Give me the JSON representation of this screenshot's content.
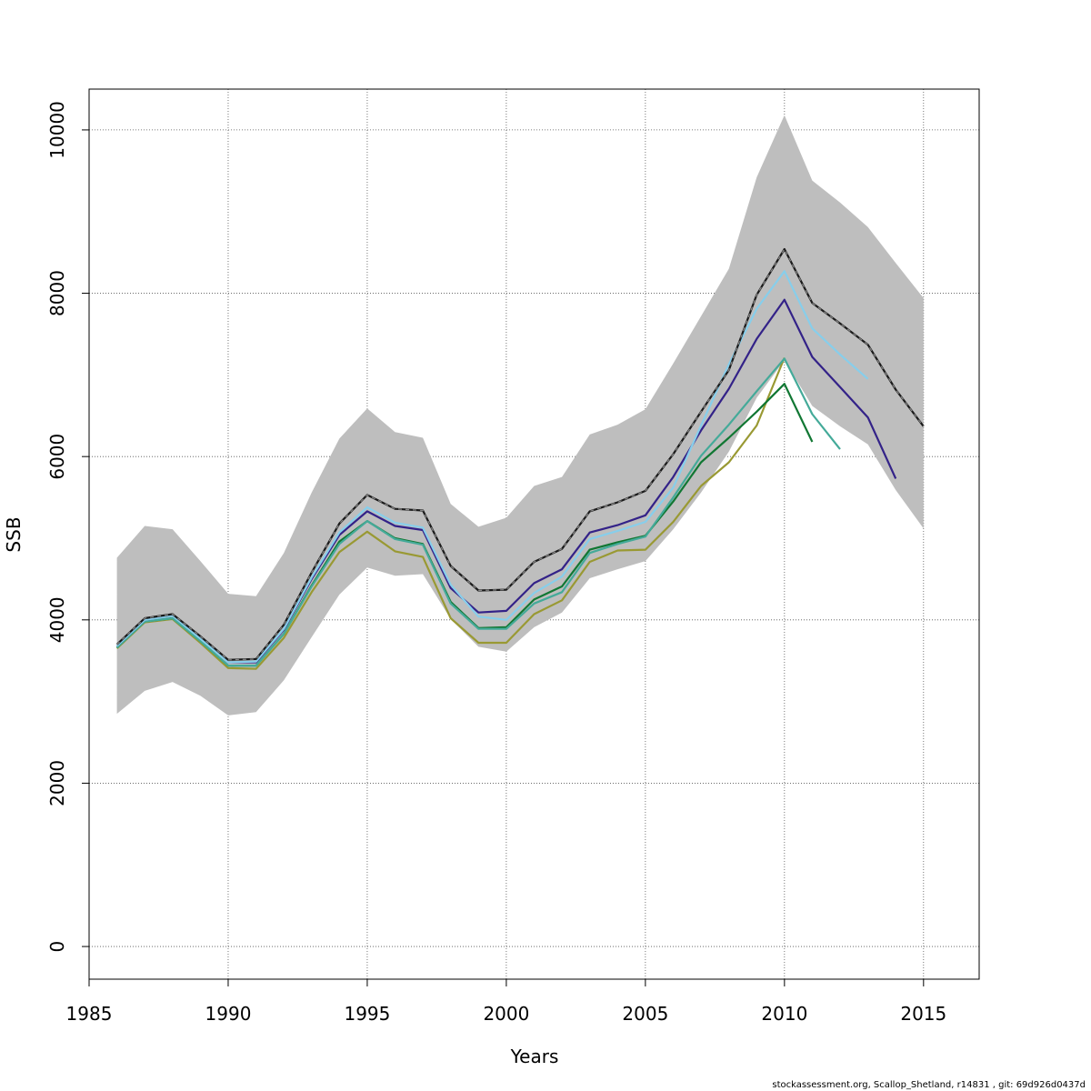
{
  "chart_data": {
    "type": "line",
    "title": "",
    "xlabel": "Years",
    "ylabel": "SSB",
    "xlim": [
      1985,
      2017
    ],
    "ylim": [
      -400,
      10500
    ],
    "x_ticks": [
      1985,
      1990,
      1995,
      2000,
      2005,
      2010,
      2015
    ],
    "y_ticks": [
      0,
      2000,
      4000,
      6000,
      8000,
      10000
    ],
    "grid": true,
    "footer": "stockassessment.org, Scallop_Shetland, r14831 , git: 69d926d0437d",
    "confidence_band": {
      "x": [
        1986,
        1987,
        1988,
        1989,
        1990,
        1991,
        1992,
        1993,
        1994,
        1995,
        1996,
        1997,
        1998,
        1999,
        2000,
        2001,
        2002,
        2003,
        2004,
        2005,
        2006,
        2007,
        2008,
        2009,
        2010,
        2011,
        2012,
        2013,
        2014,
        2015
      ],
      "lower": [
        2850,
        3130,
        3240,
        3070,
        2830,
        2870,
        3260,
        3790,
        4310,
        4640,
        4540,
        4560,
        4010,
        3670,
        3610,
        3910,
        4090,
        4510,
        4620,
        4720,
        5110,
        5560,
        6060,
        6720,
        7180,
        6620,
        6370,
        6150,
        5590,
        5120
      ],
      "upper": [
        4760,
        5150,
        5110,
        4720,
        4320,
        4290,
        4820,
        5560,
        6220,
        6590,
        6300,
        6230,
        5420,
        5140,
        5250,
        5640,
        5750,
        6270,
        6390,
        6580,
        7140,
        7720,
        8300,
        9420,
        10180,
        9380,
        9110,
        8810,
        8370,
        7940
      ],
      "color": "#bebebe"
    },
    "series": [
      {
        "color": "#1a1a1a",
        "dashed": true,
        "x": [
          1986,
          1987,
          1988,
          1989,
          1990,
          1991,
          1992,
          1993,
          1994,
          1995,
          1996,
          1997,
          1998,
          1999,
          2000,
          2001,
          2002,
          2003,
          2004,
          2005,
          2006,
          2007,
          2008,
          2009,
          2010,
          2011,
          2012,
          2013,
          2014,
          2015
        ],
        "values": [
          3700,
          4020,
          4070,
          3800,
          3510,
          3520,
          3940,
          4580,
          5180,
          5530,
          5360,
          5340,
          4660,
          4360,
          4370,
          4710,
          4870,
          5330,
          5440,
          5580,
          6030,
          6550,
          7060,
          7980,
          8540,
          7880,
          7630,
          7370,
          6820,
          6370
        ]
      },
      {
        "color": "#87ceeb",
        "dashed": false,
        "x": [
          1986,
          1987,
          1988,
          1989,
          1990,
          1991,
          1992,
          1993,
          1994,
          1995,
          1996,
          1997,
          1998,
          1999,
          2000,
          2001,
          2002,
          2003,
          2004,
          2005,
          2006,
          2007,
          2008,
          2009,
          2010,
          2011,
          2012,
          2013
        ],
        "values": [
          3680,
          4000,
          4050,
          3770,
          3480,
          3490,
          3890,
          4520,
          5070,
          5380,
          5190,
          5130,
          4430,
          4040,
          4000,
          4330,
          4530,
          4990,
          5090,
          5200,
          5620,
          6380,
          7130,
          7810,
          8270,
          7570,
          7250,
          6950
        ]
      },
      {
        "color": "#332288",
        "dashed": false,
        "x": [
          1986,
          1987,
          1988,
          1989,
          1990,
          1991,
          1992,
          1993,
          1994,
          1995,
          1996,
          1997,
          1998,
          1999,
          2000,
          2001,
          2002,
          2003,
          2004,
          2005,
          2006,
          2007,
          2008,
          2009,
          2010,
          2011,
          2012,
          2013,
          2014
        ],
        "values": [
          3680,
          4000,
          4050,
          3780,
          3480,
          3480,
          3880,
          4500,
          5040,
          5330,
          5150,
          5100,
          4390,
          4090,
          4110,
          4450,
          4620,
          5070,
          5160,
          5280,
          5750,
          6320,
          6830,
          7440,
          7920,
          7220,
          6850,
          6480,
          5730
        ]
      },
      {
        "color": "#44aa99",
        "dashed": false,
        "x": [
          1986,
          1987,
          1988,
          1989,
          1990,
          1991,
          1992,
          1993,
          1994,
          1995,
          1996,
          1997,
          1998,
          1999,
          2000,
          2001,
          2002,
          2003,
          2004,
          2005,
          2006,
          2007,
          2008,
          2009,
          2010,
          2011,
          2012
        ],
        "values": [
          3660,
          3980,
          4020,
          3740,
          3440,
          3440,
          3830,
          4410,
          4930,
          5210,
          4990,
          4920,
          4200,
          3890,
          3890,
          4200,
          4340,
          4820,
          4930,
          5020,
          5500,
          6010,
          6390,
          6800,
          7200,
          6520,
          6090
        ]
      },
      {
        "color": "#117733",
        "dashed": false,
        "x": [
          1986,
          1987,
          1988,
          1989,
          1990,
          1991,
          1992,
          1993,
          1994,
          1995,
          1996,
          1997,
          1998,
          1999,
          2000,
          2001,
          2002,
          2003,
          2004,
          2005,
          2006,
          2007,
          2008,
          2009,
          2010,
          2011
        ],
        "values": [
          3660,
          3980,
          4020,
          3740,
          3440,
          3440,
          3830,
          4420,
          4960,
          5210,
          5000,
          4930,
          4220,
          3900,
          3910,
          4250,
          4410,
          4860,
          4950,
          5030,
          5450,
          5930,
          6230,
          6550,
          6890,
          6180
        ]
      },
      {
        "color": "#999933",
        "dashed": false,
        "x": [
          1986,
          1987,
          1988,
          1989,
          1990,
          1991,
          1992,
          1993,
          1994,
          1995,
          1996,
          1997,
          1998,
          1999,
          2000,
          2001,
          2002,
          2003,
          2004,
          2005,
          2006,
          2007,
          2008,
          2009,
          2010
        ],
        "values": [
          3650,
          3970,
          4010,
          3720,
          3410,
          3400,
          3780,
          4340,
          4830,
          5080,
          4840,
          4770,
          4020,
          3720,
          3720,
          4070,
          4240,
          4710,
          4850,
          4860,
          5200,
          5640,
          5930,
          6380,
          7210
        ]
      }
    ]
  }
}
